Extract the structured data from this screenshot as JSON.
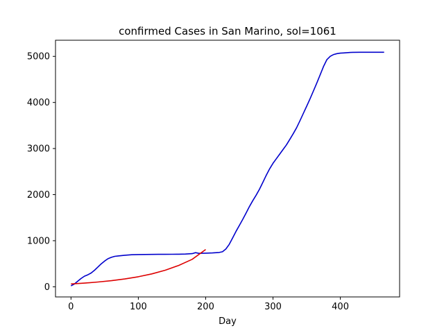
{
  "chart_data": {
    "type": "line",
    "title": "confirmed Cases in San Marino, sol=1061",
    "xlabel": "Day",
    "ylabel": "",
    "xlim": [
      -23,
      488
    ],
    "ylim": [
      -220,
      5350
    ],
    "xticks": [
      0,
      100,
      200,
      300,
      400
    ],
    "yticks": [
      0,
      1000,
      2000,
      3000,
      4000,
      5000
    ],
    "grid": false,
    "series": [
      {
        "color": "#0000cc",
        "x": [
          0,
          5,
          10,
          15,
          20,
          25,
          30,
          35,
          40,
          45,
          50,
          55,
          60,
          65,
          70,
          80,
          90,
          100,
          110,
          120,
          130,
          140,
          150,
          160,
          170,
          180,
          185,
          190,
          200,
          210,
          220,
          225,
          230,
          235,
          240,
          245,
          250,
          255,
          260,
          265,
          270,
          275,
          280,
          285,
          290,
          295,
          300,
          305,
          310,
          315,
          320,
          325,
          330,
          335,
          340,
          345,
          350,
          355,
          360,
          365,
          370,
          375,
          380,
          385,
          390,
          395,
          400,
          405,
          410,
          415,
          420,
          430,
          440,
          450,
          465
        ],
        "y": [
          20,
          60,
          120,
          180,
          230,
          260,
          300,
          360,
          430,
          500,
          560,
          610,
          640,
          660,
          670,
          685,
          695,
          700,
          702,
          703,
          704,
          705,
          706,
          708,
          710,
          720,
          740,
          725,
          730,
          735,
          745,
          760,
          820,
          920,
          1060,
          1200,
          1330,
          1460,
          1600,
          1740,
          1870,
          1990,
          2120,
          2270,
          2420,
          2560,
          2680,
          2780,
          2880,
          2980,
          3080,
          3200,
          3320,
          3450,
          3600,
          3760,
          3920,
          4080,
          4250,
          4420,
          4600,
          4780,
          4930,
          5000,
          5040,
          5060,
          5070,
          5075,
          5080,
          5085,
          5088,
          5090,
          5090,
          5090,
          5090
        ]
      },
      {
        "color": "#dd0000",
        "x": [
          0,
          20,
          40,
          60,
          80,
          100,
          120,
          140,
          160,
          180,
          200
        ],
        "y": [
          62,
          80,
          103,
          132,
          170,
          218,
          280,
          360,
          463,
          596,
          810
        ]
      }
    ]
  }
}
